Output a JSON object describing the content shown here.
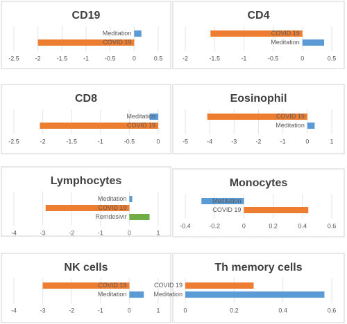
{
  "chart_data": [
    {
      "type": "bar",
      "title": "CD19",
      "categories": [
        "Meditation",
        "COVID 19"
      ],
      "values": [
        0.15,
        -2.0
      ],
      "colors": [
        "#5b9bd5",
        "#ed7d31"
      ],
      "xlim": [
        -2.5,
        0.5
      ],
      "xticks": [
        -2.5,
        -2,
        -1.5,
        -1,
        -0.5,
        0,
        0.5
      ],
      "grid": true
    },
    {
      "type": "bar",
      "title": "CD4",
      "categories": [
        "COVID 19",
        "Meditation"
      ],
      "values": [
        -1.57,
        0.37
      ],
      "colors": [
        "#ed7d31",
        "#5b9bd5"
      ],
      "xlim": [
        -2,
        0.5
      ],
      "xticks": [
        -2,
        -1.5,
        -1,
        -0.5,
        0,
        0.5
      ],
      "grid": true
    },
    {
      "type": "bar",
      "title": "CD8",
      "categories": [
        "Meditation",
        "COVID 19"
      ],
      "values": [
        -0.15,
        -2.05
      ],
      "colors": [
        "#5b9bd5",
        "#ed7d31"
      ],
      "xlim": [
        -2.5,
        0
      ],
      "xticks": [
        -2.5,
        -2,
        -1.5,
        -1,
        -0.5,
        0
      ],
      "grid": true
    },
    {
      "type": "bar",
      "title": "Eosinophil",
      "categories": [
        "COVID 19",
        "Meditation"
      ],
      "values": [
        -4.1,
        0.3
      ],
      "colors": [
        "#ed7d31",
        "#5b9bd5"
      ],
      "xlim": [
        -5,
        1
      ],
      "xticks": [
        -5,
        -4,
        -3,
        -2,
        -1,
        0,
        1
      ],
      "grid": true
    },
    {
      "type": "bar",
      "title": "Lymphocytes",
      "categories": [
        "Meditation",
        "COVID 19",
        "Remdesivir"
      ],
      "values": [
        0.1,
        -2.9,
        0.7
      ],
      "colors": [
        "#5b9bd5",
        "#ed7d31",
        "#70ad47"
      ],
      "xlim": [
        -4,
        1
      ],
      "xticks": [
        -4,
        -3,
        -2,
        -1,
        0,
        1
      ],
      "grid": true
    },
    {
      "type": "bar",
      "title": "Monocytes",
      "categories": [
        "Meditation",
        "COVID 19"
      ],
      "values": [
        -0.29,
        0.44
      ],
      "colors": [
        "#5b9bd5",
        "#ed7d31"
      ],
      "xlim": [
        -0.4,
        0.6
      ],
      "xticks": [
        -0.4,
        -0.2,
        0,
        0.2,
        0.4,
        0.6
      ],
      "grid": true
    },
    {
      "type": "bar",
      "title": "NK cells",
      "categories": [
        "COVID 19",
        "Meditation"
      ],
      "values": [
        -3.0,
        0.5
      ],
      "colors": [
        "#ed7d31",
        "#5b9bd5"
      ],
      "xlim": [
        -4,
        1
      ],
      "xticks": [
        -4,
        -3,
        -2,
        -1,
        0,
        1
      ],
      "grid": true
    },
    {
      "type": "bar",
      "title": "Th memory cells",
      "categories": [
        "COVID 19",
        "Meditation"
      ],
      "values": [
        0.28,
        0.57
      ],
      "colors": [
        "#ed7d31",
        "#5b9bd5"
      ],
      "xlim": [
        0,
        0.6
      ],
      "xticks": [
        0,
        0.2,
        0.4,
        0.6
      ],
      "grid": true
    }
  ]
}
